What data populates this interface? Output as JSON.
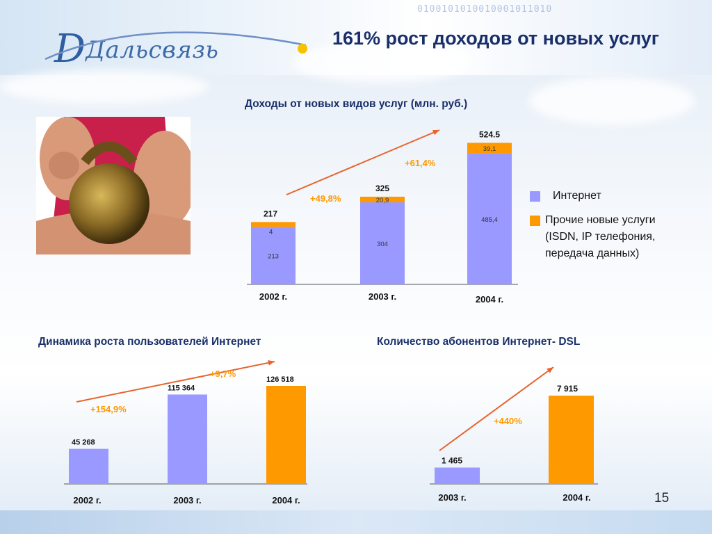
{
  "slide": {
    "title": "161% рост доходов от новых услуг",
    "logo_text": "Дальсвязь",
    "page_number": "15",
    "binary_decoration": "0100101010010001011010"
  },
  "colors": {
    "internet": "#9999ff",
    "other_services": "#ff9900",
    "arrow": "#e8642c",
    "title": "#1a2f6a"
  },
  "legend": {
    "internet": "Интернет",
    "other_line1": "Прочие новые услуги",
    "other_line2": "(ISDN, IP телефония,",
    "other_line3": "передача данных)"
  },
  "chart_data": [
    {
      "type": "bar",
      "title": "Доходы от новых видов услуг (млн. руб.)",
      "categories": [
        "2002 г.",
        "2003 г.",
        "2004 г."
      ],
      "stacked": true,
      "series": [
        {
          "name": "Интернет",
          "values": [
            213,
            304,
            485.4
          ],
          "labels": [
            "213",
            "304",
            "485,4"
          ]
        },
        {
          "name": "Прочие новые услуги (ISDN, IP телефония, передача данных)",
          "values": [
            4,
            20.9,
            39.1
          ],
          "labels": [
            "4",
            "20,9",
            "39,1"
          ]
        }
      ],
      "totals": [
        "217",
        "325",
        "524.5"
      ],
      "growth": [
        "+49,8%",
        "+61,4%"
      ]
    },
    {
      "type": "bar",
      "title": "Динамика роста пользователей Интернет",
      "categories": [
        "2002 г.",
        "2003 г.",
        "2004 г."
      ],
      "values": [
        45268,
        115364,
        126518
      ],
      "labels": [
        "45 268",
        "115 364",
        "126 518"
      ],
      "growth": [
        "+154,9%",
        "+9,7%"
      ]
    },
    {
      "type": "bar",
      "title": "Количество абонентов Интернет- DSL",
      "categories": [
        "2003 г.",
        "2004 г."
      ],
      "values": [
        1465,
        7915
      ],
      "labels": [
        "1 465",
        "7 915"
      ],
      "growth": [
        "+440%"
      ]
    }
  ]
}
